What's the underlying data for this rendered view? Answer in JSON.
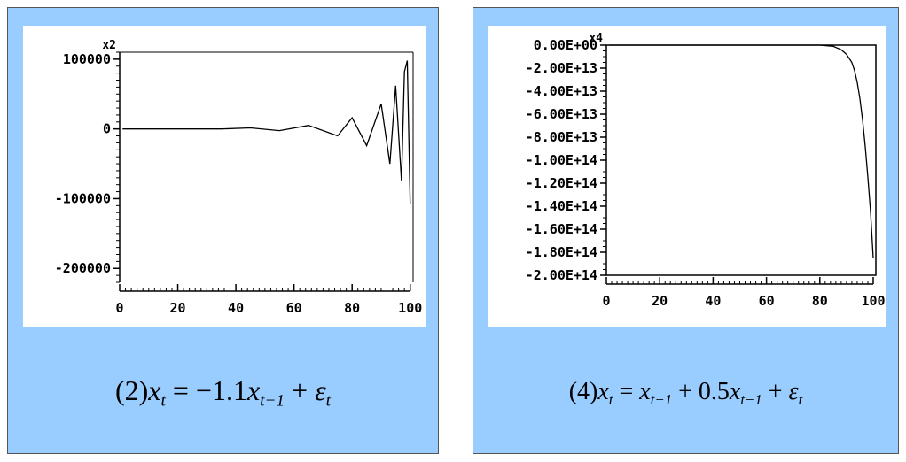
{
  "chart_data": [
    {
      "type": "line",
      "multiplier": "x2",
      "ylim": [
        -220000,
        110000
      ],
      "xlim": [
        0,
        101
      ],
      "yticks": [
        100000,
        0,
        -100000,
        -200000
      ],
      "ytick_labels": [
        "100000",
        "0",
        "-100000",
        "-200000"
      ],
      "xticks": [
        0,
        20,
        40,
        60,
        80,
        100
      ],
      "xtick_labels": [
        "0",
        "20",
        "40",
        "60",
        "80",
        "100"
      ],
      "series": [
        {
          "description": "oscillating explosive series",
          "x": [
            1,
            35,
            45,
            55,
            65,
            75,
            80,
            85,
            90,
            93,
            95,
            97,
            98,
            99,
            100
          ],
          "y": [
            0,
            0,
            1500,
            -2500,
            5000,
            -10000,
            16000,
            -24000,
            36000,
            -50000,
            62000,
            -75000,
            82000,
            98000,
            -108000
          ]
        }
      ],
      "formula": {
        "prefix": "(2)",
        "lhs": "x",
        "lhs_sub": "t",
        "eq": "= −1.1",
        "term1": "x",
        "term1_sub": "t−1",
        "plus": "+",
        "eps": "ε",
        "eps_sub": "t"
      }
    },
    {
      "type": "line",
      "multiplier": "x4",
      "ylim": [
        -200000000000000.0,
        0
      ],
      "xlim": [
        0,
        101
      ],
      "yticks": [
        0,
        -20000000000000.0,
        -40000000000000.0,
        -60000000000000.0,
        -80000000000000.0,
        -100000000000000.0,
        -120000000000000.0,
        -140000000000000.0,
        -160000000000000.0,
        -180000000000000.0,
        -200000000000000.0
      ],
      "ytick_labels": [
        "0.00E+00",
        "-2.00E+13",
        "-4.00E+13",
        "-6.00E+13",
        "-8.00E+13",
        "-1.00E+14",
        "-1.20E+14",
        "-1.40E+14",
        "-1.60E+14",
        "-1.80E+14",
        "-2.00E+14"
      ],
      "xticks": [
        0,
        20,
        40,
        60,
        80,
        100
      ],
      "xtick_labels": [
        "0",
        "20",
        "40",
        "60",
        "80",
        "100"
      ],
      "series": [
        {
          "description": "explosive series",
          "x": [
            1,
            80,
            85,
            88,
            90,
            92,
            93,
            94,
            95,
            96,
            97,
            98,
            99,
            100
          ],
          "y": [
            0,
            0,
            -1000000000000.0,
            -4000000000000.0,
            -8000000000000.0,
            -15000000000000.0,
            -22000000000000.0,
            -32000000000000.0,
            -46000000000000.0,
            -65000000000000.0,
            -88000000000000.0,
            -115000000000000.0,
            -145000000000000.0,
            -185000000000000.0
          ]
        }
      ],
      "formula": {
        "prefix": "(4)",
        "lhs": "x",
        "lhs_sub": "t",
        "eq": "=",
        "term1": "x",
        "term1_sub": "t−1",
        "plus1": "+ 0.5",
        "term2": "x",
        "term2_sub": "t−1",
        "plus": "+",
        "eps": "ε",
        "eps_sub": "t"
      }
    }
  ]
}
